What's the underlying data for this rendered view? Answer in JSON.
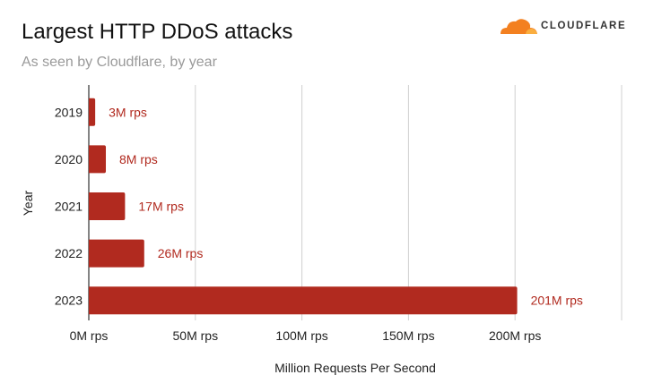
{
  "header": {
    "title": "Largest HTTP DDoS attacks",
    "subtitle": "As seen by Cloudflare, by year",
    "logo_text": "CLOUDFLARE",
    "logo_icon": "cloud-icon"
  },
  "colors": {
    "bar": "#b12a1f",
    "label": "#b12a1f",
    "logo": "#f38020"
  },
  "chart_data": {
    "type": "bar",
    "orientation": "horizontal",
    "title": "Largest HTTP DDoS attacks",
    "subtitle": "As seen by Cloudflare, by year",
    "xlabel": "Million Requests Per Second",
    "ylabel": "Year",
    "categories": [
      "2019",
      "2020",
      "2021",
      "2022",
      "2023"
    ],
    "values": [
      3,
      8,
      17,
      26,
      201
    ],
    "data_labels": [
      "3M rps",
      "8M rps",
      "17M rps",
      "26M rps",
      "201M rps"
    ],
    "xlim": [
      0,
      250
    ],
    "xticks": [
      0,
      50,
      100,
      150,
      200,
      250
    ],
    "xtick_labels": [
      "0M rps",
      "50M rps",
      "100M rps",
      "150M rps",
      "200M rps",
      ""
    ],
    "grid": true,
    "legend": "none"
  }
}
